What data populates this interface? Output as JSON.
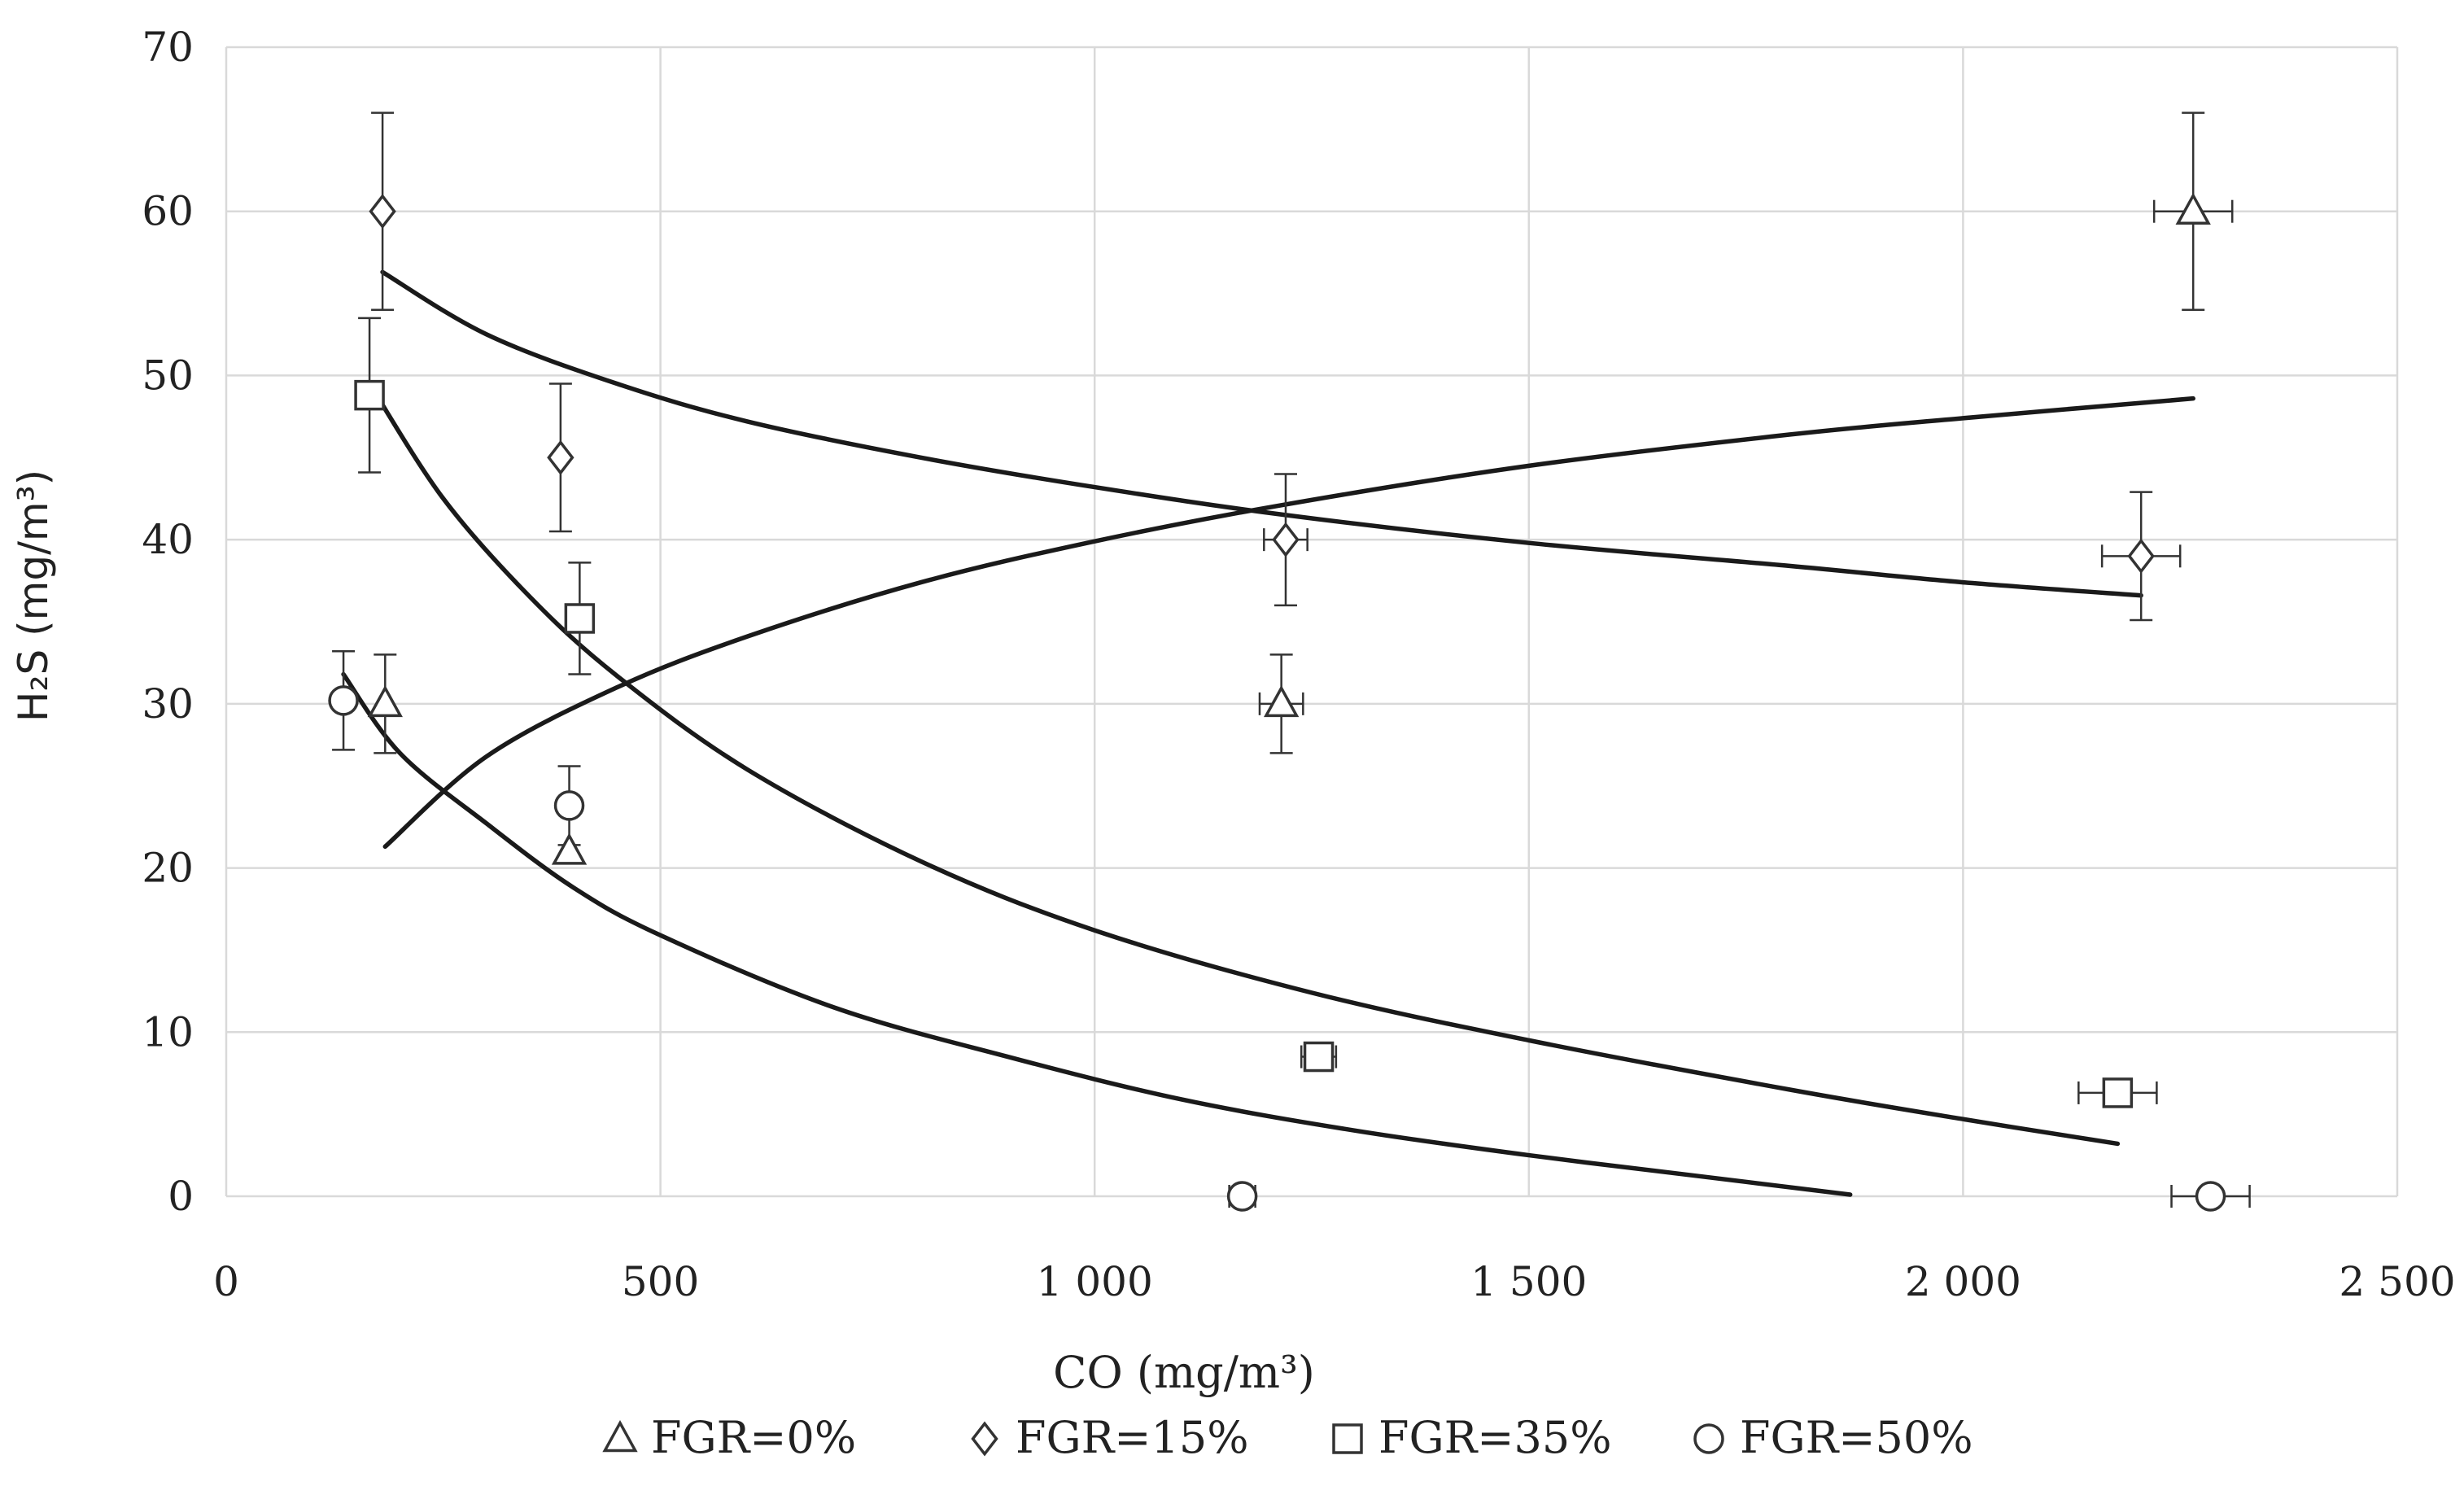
{
  "chart_data": {
    "type": "scatter",
    "title": "",
    "xlabel": "CO (mg/m³)",
    "ylabel": "H₂S (mg/m³)",
    "xlim": [
      0,
      2500
    ],
    "ylim": [
      0,
      70
    ],
    "x_ticks": [
      0,
      500,
      1000,
      1500,
      2000,
      2500
    ],
    "x_tick_labels": [
      "0",
      "500",
      "1 000",
      "1 500",
      "2 000",
      "2 500"
    ],
    "y_ticks": [
      0,
      10,
      20,
      30,
      40,
      50,
      60,
      70
    ],
    "y_tick_labels": [
      "0",
      "10",
      "20",
      "30",
      "40",
      "50",
      "60",
      "70"
    ],
    "grid": true,
    "legend_position": "bottom",
    "series": [
      {
        "name": "FGR=0%",
        "marker": "triangle",
        "points": [
          {
            "x": 183,
            "y": 30,
            "yerr": 3,
            "xerr": 0
          },
          {
            "x": 395,
            "y": 21,
            "yerr": 0,
            "xerr": 0
          },
          {
            "x": 1215,
            "y": 30,
            "yerr": 3,
            "xerr": 25
          },
          {
            "x": 2265,
            "y": 60,
            "yerr": 6,
            "xerr": 45
          }
        ],
        "trend": {
          "x": [
            183,
            300,
            450,
            600,
            800,
            1000,
            1215,
            1500,
            1800,
            2000,
            2265
          ],
          "y": [
            21.3,
            26.8,
            31.0,
            34.1,
            37.4,
            39.9,
            42.1,
            44.5,
            46.4,
            47.4,
            48.6
          ]
        }
      },
      {
        "name": "FGR=15%",
        "marker": "diamond",
        "points": [
          {
            "x": 180,
            "y": 60,
            "yerr": 6,
            "xerr": 0
          },
          {
            "x": 385,
            "y": 45,
            "yerr": 4.5,
            "xerr": 0
          },
          {
            "x": 1220,
            "y": 40,
            "yerr": 4,
            "xerr": 25
          },
          {
            "x": 2205,
            "y": 39,
            "yerr": 3.9,
            "xerr": 45
          }
        ],
        "trend": {
          "x": [
            180,
            300,
            450,
            600,
            800,
            1000,
            1220,
            1500,
            1800,
            2000,
            2205
          ],
          "y": [
            56.3,
            52.5,
            49.5,
            47.2,
            45.0,
            43.2,
            41.5,
            39.8,
            38.4,
            37.4,
            36.6
          ]
        }
      },
      {
        "name": "FGR=35%",
        "marker": "square",
        "points": [
          {
            "x": 165,
            "y": 48.8,
            "yerr": 4.7,
            "xerr": 0
          },
          {
            "x": 407,
            "y": 35.2,
            "yerr": 3.4,
            "xerr": 0
          },
          {
            "x": 1258,
            "y": 8.5,
            "yerr": 0.8,
            "xerr": 20
          },
          {
            "x": 2178,
            "y": 6.3,
            "yerr": 0.6,
            "xerr": 45
          }
        ],
        "trend": {
          "x": [
            165,
            250,
            350,
            450,
            600,
            800,
            1000,
            1250,
            1500,
            1800,
            2000,
            2178
          ],
          "y": [
            49.5,
            42.5,
            36.5,
            31.7,
            26.0,
            20.4,
            16.2,
            12.4,
            9.5,
            6.5,
            4.7,
            3.2
          ]
        }
      },
      {
        "name": "FGR=50%",
        "marker": "circle",
        "points": [
          {
            "x": 135,
            "y": 30.2,
            "yerr": 3,
            "xerr": 0
          },
          {
            "x": 395,
            "y": 23.8,
            "yerr": 2.4,
            "xerr": 0
          },
          {
            "x": 1170,
            "y": 0,
            "yerr": 0,
            "xerr": 15
          },
          {
            "x": 2285,
            "y": 0,
            "yerr": 0,
            "xerr": 45
          }
        ],
        "trend": {
          "x": [
            135,
            200,
            300,
            400,
            500,
            700,
            900,
            1100,
            1300,
            1500,
            1700,
            1870
          ],
          "y": [
            31.8,
            27.0,
            22.7,
            18.8,
            15.9,
            11.5,
            8.5,
            5.9,
            4.0,
            2.5,
            1.2,
            0.1
          ]
        }
      }
    ]
  }
}
